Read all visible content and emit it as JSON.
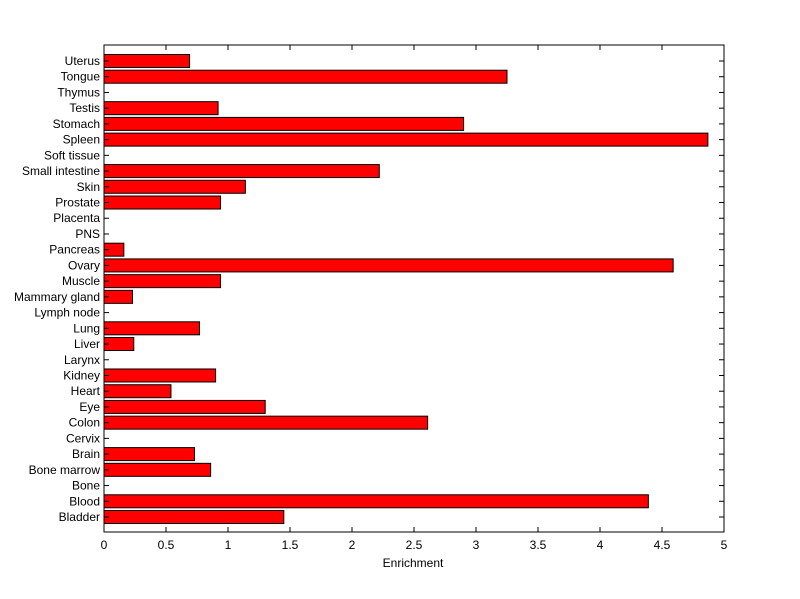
{
  "chart_data": {
    "type": "bar",
    "orientation": "horizontal",
    "categories": [
      "Uterus",
      "Tongue",
      "Thymus",
      "Testis",
      "Stomach",
      "Spleen",
      "Soft tissue",
      "Small intestine",
      "Skin",
      "Prostate",
      "Placenta",
      "PNS",
      "Pancreas",
      "Ovary",
      "Muscle",
      "Mammary gland",
      "Lymph node",
      "Lung",
      "Liver",
      "Larynx",
      "Kidney",
      "Heart",
      "Eye",
      "Colon",
      "Cervix",
      "Brain",
      "Bone marrow",
      "Bone",
      "Blood",
      "Bladder"
    ],
    "values": [
      0.69,
      3.25,
      0,
      0.92,
      2.9,
      4.87,
      0,
      2.22,
      1.14,
      0.94,
      0,
      0,
      0.16,
      4.59,
      0.94,
      0.23,
      0,
      0.77,
      0.24,
      0,
      0.9,
      0.54,
      1.3,
      2.61,
      0,
      0.73,
      0.86,
      0,
      4.39,
      1.45
    ],
    "title": "",
    "xlabel": "Enrichment",
    "ylabel": "",
    "xlim": [
      0,
      5
    ],
    "xticks": [
      "0",
      "0.5",
      "1",
      "1.5",
      "2",
      "2.5",
      "3",
      "3.5",
      "4",
      "4.5",
      "5"
    ],
    "bar_color": "#ff0000",
    "bar_edge_color": "#000000",
    "grid": false,
    "legend": "none"
  }
}
